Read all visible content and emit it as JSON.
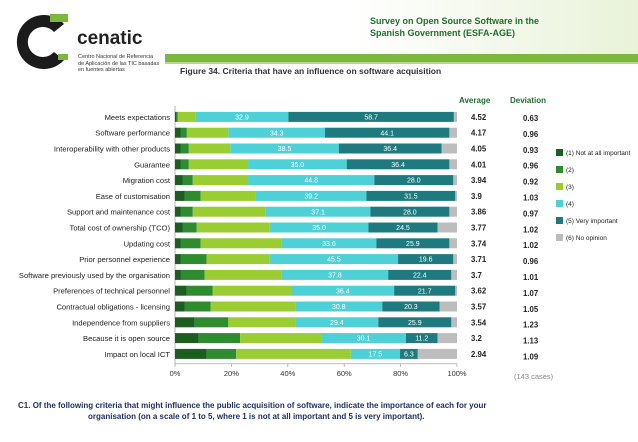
{
  "header": {
    "survey_title_line1": "Survey on Open Source Software in the",
    "survey_title_line2": "Spanish Government (ESFA-AGE)",
    "logo_name": "cenatic",
    "logo_subtitle_1": "Centro Nacional de Referencia",
    "logo_subtitle_2": "de Aplicación de las TIC basadas",
    "logo_subtitle_3": "en fuentes abiertas",
    "figure_title": "Figure 34. Criteria that have an influence on software acquisition"
  },
  "colors": {
    "brand_green": "#1f6f2e",
    "stripe": "#7db73b",
    "c1": "#1b5e20",
    "c2": "#2e8b2e",
    "c3": "#9acd32",
    "c4": "#4dd0d6",
    "c5": "#1e7a7e",
    "c6": "#bdbdbd"
  },
  "columns": {
    "average_label": "Average",
    "deviation_label": "Deviation"
  },
  "cases_note": "(143 cases)",
  "question": {
    "prefix": "C1.",
    "line1": "Of the following criteria that might influence the public acquisition of software, indicate the importance of each for your",
    "line2": "organisation (on a scale of 1 to 5, where 1 is not at all important and 5 is very important)."
  },
  "chart_data": {
    "type": "bar",
    "orientation": "horizontal-stacked-percent",
    "title": "Figure 34. Criteria that have an influence on software acquisition",
    "xlim": [
      0,
      100
    ],
    "x_ticks": [
      "0%",
      "20%",
      "40%",
      "60%",
      "80%",
      "100%"
    ],
    "legend_position": "right",
    "categories": [
      "Meets expectations",
      "Software performance",
      "Interoperability with other products",
      "Guarantee",
      "Migration cost",
      "Ease of customisation",
      "Support and maintenance cost",
      "Total cost of ownership (TCO)",
      "Updating cost",
      "Prior personnel experience",
      "Software previously used by the organisation",
      "Preferences of technical personnel",
      "Contractual obligations - licensing",
      "Independence from suppliers",
      "Because it is open source",
      "Impact on local ICT"
    ],
    "series": [
      {
        "name": "(1) Not at all important",
        "values": [
          0.5,
          2.1,
          2.1,
          2.1,
          2.8,
          3.5,
          2.1,
          2.8,
          2.1,
          2.1,
          2.1,
          4.2,
          3.5,
          7.0,
          8.4,
          11.2
        ]
      },
      {
        "name": "(2)",
        "values": [
          0.5,
          2.1,
          2.8,
          2.8,
          3.5,
          5.6,
          4.2,
          4.9,
          7.0,
          9.1,
          8.4,
          9.1,
          9.1,
          11.9,
          14.7,
          10.5
        ]
      },
      {
        "name": "(3)",
        "values": [
          6.3,
          14.7,
          14.7,
          21.0,
          19.6,
          19.6,
          25.9,
          25.9,
          28.7,
          22.4,
          27.3,
          28.0,
          30.1,
          23.8,
          28.7,
          40.6
        ]
      },
      {
        "name": "(4)",
        "values": [
          32.9,
          34.3,
          38.5,
          35.0,
          44.8,
          39.2,
          37.1,
          35.0,
          33.6,
          45.5,
          37.8,
          36.4,
          30.8,
          29.4,
          30.1,
          17.5
        ]
      },
      {
        "name": "(5) Very important",
        "values": [
          58.7,
          44.1,
          36.4,
          36.4,
          28.0,
          31.5,
          28.0,
          24.5,
          25.9,
          19.6,
          22.4,
          21.7,
          20.3,
          25.9,
          11.2,
          6.3
        ]
      },
      {
        "name": "(6) No opinion",
        "values": [
          1.1,
          2.7,
          5.5,
          2.7,
          1.3,
          0.6,
          2.7,
          6.9,
          2.7,
          1.3,
          2.0,
          0.6,
          6.2,
          2.0,
          6.9,
          13.9
        ]
      }
    ],
    "label_series_indices": [
      3,
      4
    ],
    "averages": [
      "4.52",
      "4.17",
      "4.05",
      "4.01",
      "3.94",
      "3.9",
      "3.86",
      "3.77",
      "3.74",
      "3.71",
      "3.7",
      "3.62",
      "3.57",
      "3.54",
      "3.2",
      "2.94"
    ],
    "deviations": [
      "0.63",
      "0.96",
      "0.93",
      "0.96",
      "0.92",
      "1.03",
      "0.97",
      "1.02",
      "1.02",
      "0.96",
      "1.01",
      "1.07",
      "1.05",
      "1.23",
      "1.13",
      "1.09"
    ],
    "bar_labels": [
      [
        "32.9",
        "58.7"
      ],
      [
        "34.3",
        "44.1"
      ],
      [
        "38.5",
        "36.4"
      ],
      [
        "35.0",
        "36.4"
      ],
      [
        "44.8",
        "28.0"
      ],
      [
        "39.2",
        "31.5"
      ],
      [
        "37.1",
        "28.0"
      ],
      [
        "35.0",
        "24.5"
      ],
      [
        "33.6",
        "25.9"
      ],
      [
        "45.5",
        "19.6"
      ],
      [
        "37.8",
        "22.4"
      ],
      [
        "36.4",
        "21.7"
      ],
      [
        "30.8",
        "20.3"
      ],
      [
        "29.4",
        "25.9"
      ],
      [
        "30.1",
        "11.2"
      ],
      [
        "17.5",
        "6.3"
      ]
    ]
  }
}
